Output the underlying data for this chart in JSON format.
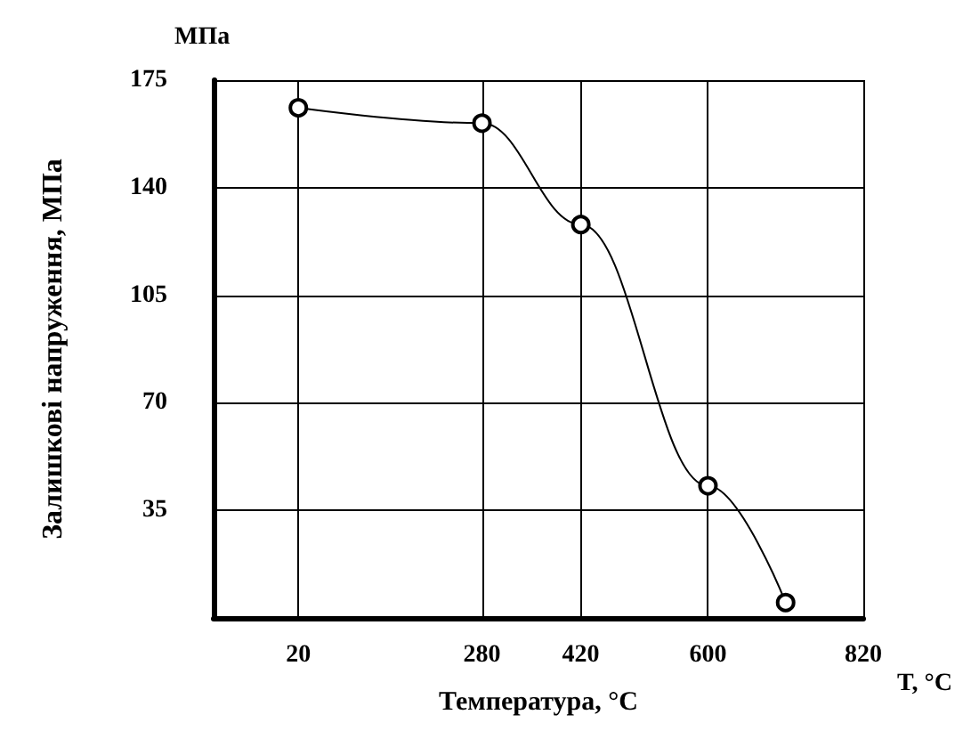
{
  "chart_data": {
    "type": "line",
    "xlabel": "Температура, °C",
    "ylabel": "Залишкові напруження, МПа",
    "annotations": [
      "МПа",
      "T, °C"
    ],
    "x": [
      20,
      280,
      420,
      600,
      710
    ],
    "series": [
      {
        "color": "#000000",
        "values": [
          166,
          161,
          128,
          43,
          5
        ]
      }
    ],
    "xlim": [
      -100,
      820
    ],
    "xticks": [
      20,
      280,
      420,
      600,
      820
    ],
    "ylim": [
      0,
      175
    ],
    "yticks": [
      35,
      70,
      105,
      140,
      175
    ],
    "grid": true,
    "marker": "circle",
    "line_style": "solid"
  }
}
